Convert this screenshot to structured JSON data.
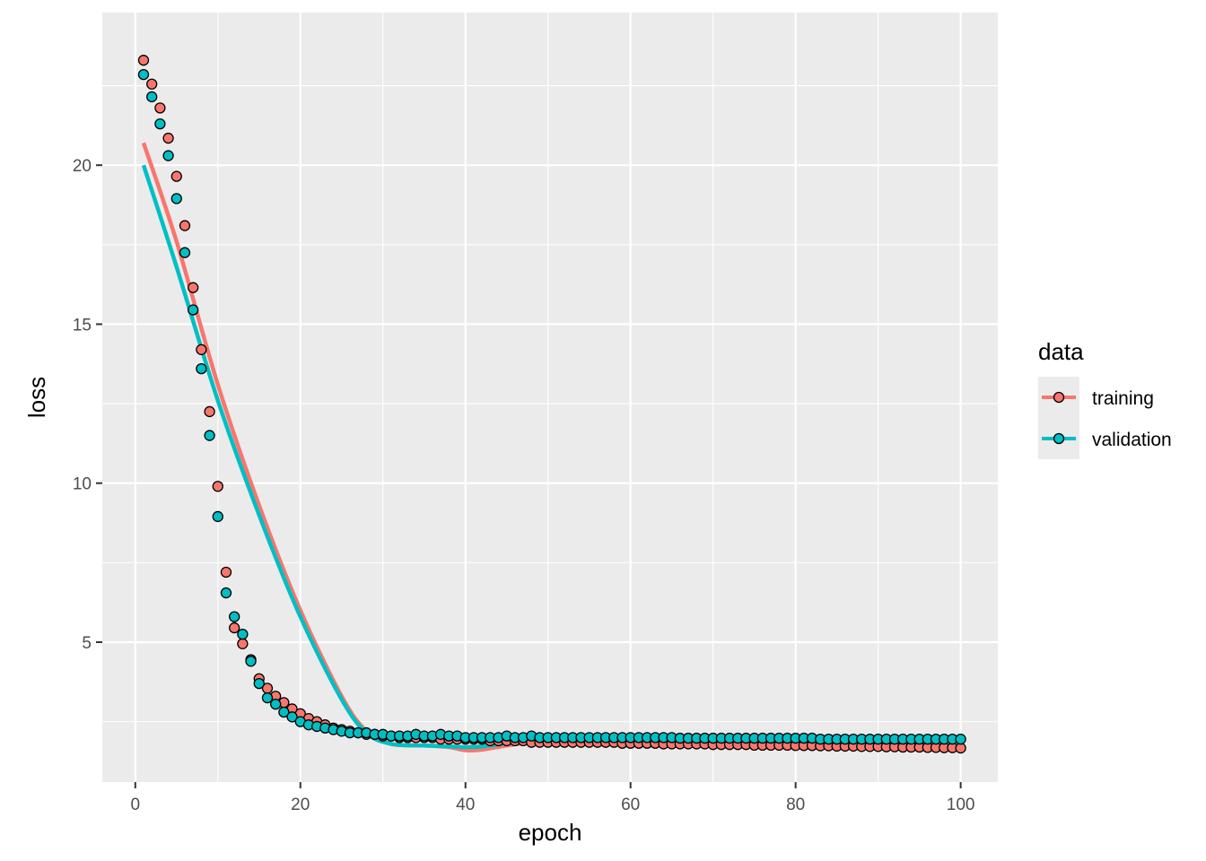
{
  "chart_data": {
    "type": "scatter",
    "xlabel": "epoch",
    "ylabel": "loss",
    "xlim": [
      -4,
      104.5
    ],
    "ylim": [
      0.6,
      24.8
    ],
    "x_ticks": [
      0,
      20,
      40,
      60,
      80,
      100
    ],
    "y_ticks": [
      5,
      10,
      15,
      20
    ],
    "grid": true,
    "legend": {
      "title": "data",
      "position": "right",
      "entries": [
        "training",
        "validation"
      ]
    },
    "series": [
      {
        "name": "training",
        "color": "#F8766D",
        "points": [
          [
            1,
            23.3
          ],
          [
            2,
            22.55
          ],
          [
            3,
            21.8
          ],
          [
            4,
            20.85
          ],
          [
            5,
            19.65
          ],
          [
            6,
            18.1
          ],
          [
            7,
            16.15
          ],
          [
            8,
            14.2
          ],
          [
            9,
            12.25
          ],
          [
            10,
            9.9
          ],
          [
            11,
            7.2
          ],
          [
            12,
            5.45
          ],
          [
            13,
            4.95
          ],
          [
            14,
            4.45
          ],
          [
            15,
            3.85
          ],
          [
            16,
            3.55
          ],
          [
            17,
            3.3
          ],
          [
            18,
            3.1
          ],
          [
            19,
            2.9
          ],
          [
            20,
            2.75
          ],
          [
            21,
            2.6
          ],
          [
            22,
            2.5
          ],
          [
            23,
            2.4
          ],
          [
            24,
            2.3
          ],
          [
            25,
            2.25
          ],
          [
            26,
            2.2
          ],
          [
            27,
            2.15
          ],
          [
            28,
            2.1
          ],
          [
            29,
            2.1
          ],
          [
            30,
            2.05
          ],
          [
            31,
            2.05
          ],
          [
            32,
            2.0
          ],
          [
            33,
            2.0
          ],
          [
            34,
            2.0
          ],
          [
            35,
            2.0
          ],
          [
            36,
            2.0
          ],
          [
            37,
            1.95
          ],
          [
            38,
            1.95
          ],
          [
            39,
            1.95
          ],
          [
            40,
            1.95
          ],
          [
            41,
            1.95
          ],
          [
            42,
            1.95
          ],
          [
            43,
            1.9
          ],
          [
            44,
            1.9
          ],
          [
            45,
            1.9
          ],
          [
            46,
            1.9
          ],
          [
            47,
            1.9
          ],
          [
            48,
            1.85
          ],
          [
            49,
            1.85
          ],
          [
            50,
            1.85
          ],
          [
            51,
            1.85
          ],
          [
            52,
            1.85
          ],
          [
            53,
            1.85
          ],
          [
            54,
            1.85
          ],
          [
            55,
            1.85
          ],
          [
            56,
            1.85
          ],
          [
            57,
            1.85
          ],
          [
            58,
            1.85
          ],
          [
            59,
            1.82
          ],
          [
            60,
            1.82
          ],
          [
            61,
            1.82
          ],
          [
            62,
            1.82
          ],
          [
            63,
            1.82
          ],
          [
            64,
            1.8
          ],
          [
            65,
            1.8
          ],
          [
            66,
            1.8
          ],
          [
            67,
            1.8
          ],
          [
            68,
            1.8
          ],
          [
            69,
            1.8
          ],
          [
            70,
            1.78
          ],
          [
            71,
            1.78
          ],
          [
            72,
            1.78
          ],
          [
            73,
            1.78
          ],
          [
            74,
            1.78
          ],
          [
            75,
            1.76
          ],
          [
            76,
            1.76
          ],
          [
            77,
            1.76
          ],
          [
            78,
            1.76
          ],
          [
            79,
            1.76
          ],
          [
            80,
            1.75
          ],
          [
            81,
            1.75
          ],
          [
            82,
            1.75
          ],
          [
            83,
            1.74
          ],
          [
            84,
            1.74
          ],
          [
            85,
            1.73
          ],
          [
            86,
            1.73
          ],
          [
            87,
            1.73
          ],
          [
            88,
            1.72
          ],
          [
            89,
            1.72
          ],
          [
            90,
            1.72
          ],
          [
            91,
            1.71
          ],
          [
            92,
            1.71
          ],
          [
            93,
            1.7
          ],
          [
            94,
            1.7
          ],
          [
            95,
            1.7
          ],
          [
            96,
            1.69
          ],
          [
            97,
            1.69
          ],
          [
            98,
            1.68
          ],
          [
            99,
            1.68
          ],
          [
            100,
            1.67
          ]
        ],
        "smooth": [
          [
            1,
            20.7
          ],
          [
            5,
            17.6
          ],
          [
            10,
            13.1
          ],
          [
            15,
            9.3
          ],
          [
            20,
            6.0
          ],
          [
            25,
            3.3
          ],
          [
            28,
            2.2
          ],
          [
            31,
            1.8
          ],
          [
            35,
            1.75
          ],
          [
            38,
            1.7
          ],
          [
            40,
            1.6
          ],
          [
            42,
            1.62
          ],
          [
            45,
            1.75
          ],
          [
            48,
            1.85
          ],
          [
            50,
            1.9
          ],
          [
            60,
            1.88
          ],
          [
            70,
            1.82
          ],
          [
            80,
            1.77
          ],
          [
            90,
            1.72
          ],
          [
            100,
            1.67
          ]
        ]
      },
      {
        "name": "validation",
        "color": "#00BFC4",
        "points": [
          [
            1,
            22.85
          ],
          [
            2,
            22.15
          ],
          [
            3,
            21.3
          ],
          [
            4,
            20.3
          ],
          [
            5,
            18.95
          ],
          [
            6,
            17.25
          ],
          [
            7,
            15.45
          ],
          [
            8,
            13.6
          ],
          [
            9,
            11.5
          ],
          [
            10,
            8.95
          ],
          [
            11,
            6.55
          ],
          [
            12,
            5.8
          ],
          [
            13,
            5.25
          ],
          [
            14,
            4.4
          ],
          [
            15,
            3.7
          ],
          [
            16,
            3.25
          ],
          [
            17,
            3.05
          ],
          [
            18,
            2.8
          ],
          [
            19,
            2.65
          ],
          [
            20,
            2.5
          ],
          [
            21,
            2.4
          ],
          [
            22,
            2.35
          ],
          [
            23,
            2.3
          ],
          [
            24,
            2.25
          ],
          [
            25,
            2.2
          ],
          [
            26,
            2.15
          ],
          [
            27,
            2.15
          ],
          [
            28,
            2.15
          ],
          [
            29,
            2.1
          ],
          [
            30,
            2.1
          ],
          [
            31,
            2.05
          ],
          [
            32,
            2.05
          ],
          [
            33,
            2.05
          ],
          [
            34,
            2.1
          ],
          [
            35,
            2.05
          ],
          [
            36,
            2.05
          ],
          [
            37,
            2.1
          ],
          [
            38,
            2.05
          ],
          [
            39,
            2.05
          ],
          [
            40,
            2.0
          ],
          [
            41,
            2.0
          ],
          [
            42,
            2.0
          ],
          [
            43,
            2.0
          ],
          [
            44,
            2.0
          ],
          [
            45,
            2.05
          ],
          [
            46,
            2.0
          ],
          [
            47,
            2.0
          ],
          [
            48,
            2.05
          ],
          [
            49,
            2.0
          ],
          [
            50,
            2.0
          ],
          [
            51,
            2.0
          ],
          [
            52,
            2.0
          ],
          [
            53,
            2.0
          ],
          [
            54,
            2.0
          ],
          [
            55,
            2.0
          ],
          [
            56,
            2.0
          ],
          [
            57,
            2.0
          ],
          [
            58,
            2.0
          ],
          [
            59,
            2.0
          ],
          [
            60,
            2.0
          ],
          [
            61,
            2.0
          ],
          [
            62,
            2.0
          ],
          [
            63,
            2.0
          ],
          [
            64,
            2.0
          ],
          [
            65,
            2.0
          ],
          [
            66,
            1.98
          ],
          [
            67,
            1.98
          ],
          [
            68,
            1.98
          ],
          [
            69,
            1.98
          ],
          [
            70,
            1.98
          ],
          [
            71,
            1.98
          ],
          [
            72,
            1.98
          ],
          [
            73,
            1.98
          ],
          [
            74,
            1.98
          ],
          [
            75,
            1.98
          ],
          [
            76,
            1.98
          ],
          [
            77,
            1.98
          ],
          [
            78,
            1.98
          ],
          [
            79,
            1.98
          ],
          [
            80,
            1.98
          ],
          [
            81,
            1.98
          ],
          [
            82,
            1.98
          ],
          [
            83,
            1.95
          ],
          [
            84,
            1.95
          ],
          [
            85,
            1.95
          ],
          [
            86,
            1.95
          ],
          [
            87,
            1.95
          ],
          [
            88,
            1.95
          ],
          [
            89,
            1.95
          ],
          [
            90,
            1.95
          ],
          [
            91,
            1.95
          ],
          [
            92,
            1.95
          ],
          [
            93,
            1.95
          ],
          [
            94,
            1.95
          ],
          [
            95,
            1.95
          ],
          [
            96,
            1.95
          ],
          [
            97,
            1.95
          ],
          [
            98,
            1.95
          ],
          [
            99,
            1.95
          ],
          [
            100,
            1.95
          ]
        ],
        "smooth": [
          [
            1,
            20.0
          ],
          [
            5,
            16.8
          ],
          [
            10,
            12.6
          ],
          [
            15,
            9.0
          ],
          [
            20,
            5.8
          ],
          [
            25,
            3.2
          ],
          [
            28,
            2.15
          ],
          [
            31,
            1.8
          ],
          [
            35,
            1.75
          ],
          [
            38,
            1.72
          ],
          [
            40,
            1.7
          ],
          [
            42,
            1.72
          ],
          [
            45,
            1.82
          ],
          [
            48,
            1.92
          ],
          [
            50,
            1.95
          ],
          [
            60,
            1.97
          ],
          [
            70,
            1.96
          ],
          [
            80,
            1.96
          ],
          [
            90,
            1.95
          ],
          [
            100,
            1.95
          ]
        ]
      }
    ]
  }
}
